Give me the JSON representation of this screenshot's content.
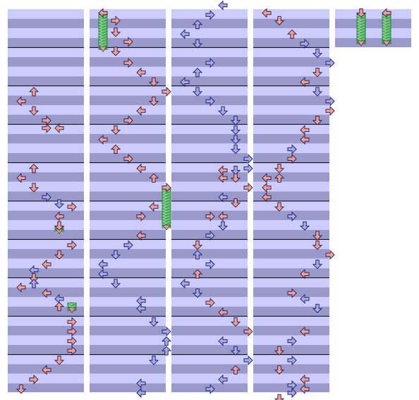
{
  "colors": {
    "band_light": "#ccccff",
    "band_dark": "#9999cc",
    "measure_line": "#000000",
    "arrow_red": "#ff9e8a",
    "arrow_blue": "#a8a8f2",
    "arrow_outline": "#1a1a55",
    "freeze_green": "#44aa55"
  },
  "chart_data": {
    "type": "step-chart",
    "columns": 5,
    "beats_per_column": 32,
    "lanes": 4,
    "notes": [
      {
        "c": 0,
        "b": 8.6,
        "lane": 1,
        "dir": "up",
        "color": "red"
      },
      {
        "c": 0,
        "b": 9.6,
        "lane": 0,
        "dir": "left",
        "color": "red"
      },
      {
        "c": 0,
        "b": 10.6,
        "lane": 1,
        "dir": "down",
        "color": "red"
      },
      {
        "c": 0,
        "b": 11.6,
        "lane": 2,
        "dir": "right",
        "color": "red"
      },
      {
        "c": 0,
        "b": 12.4,
        "lane": 2,
        "dir": "right",
        "color": "red"
      },
      {
        "c": 0,
        "b": 12.4,
        "lane": 3,
        "dir": "left",
        "color": "red"
      },
      {
        "c": 0,
        "b": 16.6,
        "lane": 1,
        "dir": "up",
        "color": "red"
      },
      {
        "c": 0,
        "b": 17.6,
        "lane": 0,
        "dir": "left",
        "color": "red"
      },
      {
        "c": 0,
        "b": 18.6,
        "lane": 1,
        "dir": "down",
        "color": "red"
      },
      {
        "c": 0,
        "b": 19.6,
        "lane": 2,
        "dir": "right",
        "color": "blue"
      },
      {
        "c": 0,
        "b": 20.3,
        "lane": 3,
        "dir": "down",
        "color": "blue"
      },
      {
        "c": 0,
        "b": 20.6,
        "lane": 4,
        "dir": "right",
        "color": "red"
      },
      {
        "c": 0,
        "b": 21.6,
        "lane": 3,
        "dir": "left",
        "color": "red"
      },
      {
        "c": 0,
        "b": 22.6,
        "lane": 3,
        "dir": "down",
        "color": "red"
      },
      {
        "c": 0,
        "b": 24.6,
        "lane": 4,
        "dir": "right",
        "color": "red"
      },
      {
        "c": 0,
        "b": 25.6,
        "lane": 3,
        "dir": "down",
        "color": "red"
      },
      {
        "c": 0,
        "b": 26.6,
        "lane": 2,
        "dir": "left",
        "color": "red"
      },
      {
        "c": 0,
        "b": 27.2,
        "lane": 1,
        "dir": "left",
        "color": "blue"
      },
      {
        "c": 0,
        "b": 28.0,
        "lane": 1,
        "dir": "down",
        "color": "red"
      },
      {
        "c": 0,
        "b": 28.6,
        "lane": 1,
        "dir": "up",
        "color": "blue"
      },
      {
        "c": 0,
        "b": 29.0,
        "lane": 0,
        "dir": "left",
        "color": "red"
      },
      {
        "c": 0,
        "b": 29.6,
        "lane": 2,
        "dir": "left",
        "color": "red"
      },
      {
        "c": 0,
        "b": 30.2,
        "lane": 3,
        "dir": "left",
        "color": "blue"
      },
      {
        "c": 0,
        "b": 31.0,
        "lane": 3,
        "dir": "up",
        "color": "red"
      },
      {
        "c": 0,
        "b": 32.6,
        "lane": 4,
        "dir": "right",
        "color": "red"
      },
      {
        "c": 0,
        "b": 33.6,
        "lane": 4,
        "dir": "right",
        "color": "red"
      },
      {
        "c": 0,
        "b": 34.6,
        "lane": 4,
        "dir": "right",
        "color": "red"
      },
      {
        "c": 0,
        "b": 35.6,
        "lane": 4,
        "dir": "right",
        "color": "red"
      },
      {
        "c": 0,
        "b": 36.6,
        "lane": 3,
        "dir": "down",
        "color": "red"
      },
      {
        "c": 0,
        "b": 37.6,
        "lane": 2,
        "dir": "left",
        "color": "red"
      },
      {
        "c": 0,
        "b": 38.6,
        "lane": 1,
        "dir": "right",
        "color": "red"
      },
      {
        "c": 0,
        "b": 39.6,
        "lane": 0,
        "dir": "down",
        "color": "red"
      },
      {
        "c": 1,
        "b": 0.4,
        "lane": 0,
        "dir": "left",
        "color": "red"
      },
      {
        "c": 1,
        "b": 1.2,
        "lane": 1,
        "dir": "right",
        "color": "red"
      },
      {
        "c": 1,
        "b": 2.4,
        "lane": 1,
        "dir": "down",
        "color": "red"
      },
      {
        "c": 1,
        "b": 3.4,
        "lane": 2,
        "dir": "right",
        "color": "red"
      },
      {
        "c": 1,
        "b": 4.4,
        "lane": 1,
        "dir": "down",
        "color": "red"
      },
      {
        "c": 1,
        "b": 5.6,
        "lane": 2,
        "dir": "right",
        "color": "red"
      },
      {
        "c": 1,
        "b": 6.6,
        "lane": 3,
        "dir": "left",
        "color": "red"
      },
      {
        "c": 1,
        "b": 7.6,
        "lane": 4,
        "dir": "down",
        "color": "red"
      },
      {
        "c": 1,
        "b": 8.6,
        "lane": 5,
        "dir": "right",
        "color": "red"
      },
      {
        "c": 1,
        "b": 9.6,
        "lane": 4,
        "dir": "down",
        "color": "red"
      },
      {
        "c": 1,
        "b": 10.6,
        "lane": 3,
        "dir": "left",
        "color": "red"
      },
      {
        "c": 1,
        "b": 11.6,
        "lane": 2,
        "dir": "right",
        "color": "red"
      },
      {
        "c": 1,
        "b": 12.6,
        "lane": 1,
        "dir": "down",
        "color": "red"
      },
      {
        "c": 1,
        "b": 13.6,
        "lane": 0,
        "dir": "left",
        "color": "red"
      },
      {
        "c": 1,
        "b": 14.6,
        "lane": 1,
        "dir": "up",
        "color": "red"
      },
      {
        "c": 1,
        "b": 15.6,
        "lane": 2,
        "dir": "right",
        "color": "red"
      },
      {
        "c": 1,
        "b": 16.6,
        "lane": 3,
        "dir": "left",
        "color": "red"
      },
      {
        "c": 1,
        "b": 17.6,
        "lane": 4,
        "dir": "up",
        "color": "red"
      },
      {
        "c": 1,
        "b": 18.6,
        "lane": 5,
        "dir": "right",
        "color": "red"
      },
      {
        "c": 1,
        "b": 20.6,
        "lane": 4,
        "dir": "left",
        "color": "red"
      },
      {
        "c": 1,
        "b": 21.6,
        "lane": 3,
        "dir": "right",
        "color": "red"
      },
      {
        "c": 1,
        "b": 23.6,
        "lane": 3,
        "dir": "left",
        "color": "red"
      },
      {
        "c": 1,
        "b": 24.6,
        "lane": 2,
        "dir": "right",
        "color": "blue"
      },
      {
        "c": 1,
        "b": 25.6,
        "lane": 1,
        "dir": "down",
        "color": "blue"
      },
      {
        "c": 1,
        "b": 26.6,
        "lane": 0,
        "dir": "left",
        "color": "blue"
      },
      {
        "c": 1,
        "b": 27.6,
        "lane": 0,
        "dir": "left",
        "color": "blue"
      },
      {
        "c": 1,
        "b": 28.6,
        "lane": 1,
        "dir": "down",
        "color": "blue"
      },
      {
        "c": 1,
        "b": 30.4,
        "lane": 3,
        "dir": "left",
        "color": "blue"
      },
      {
        "c": 1,
        "b": 31.2,
        "lane": 3,
        "dir": "left",
        "color": "blue"
      },
      {
        "c": 1,
        "b": 32.6,
        "lane": 4,
        "dir": "down",
        "color": "blue"
      },
      {
        "c": 1,
        "b": 33.6,
        "lane": 5,
        "dir": "right",
        "color": "blue"
      },
      {
        "c": 1,
        "b": 34.6,
        "lane": 5,
        "dir": "up",
        "color": "blue"
      },
      {
        "c": 1,
        "b": 35.6,
        "lane": 5,
        "dir": "up",
        "color": "blue"
      },
      {
        "c": 1,
        "b": 36.6,
        "lane": 4,
        "dir": "down",
        "color": "blue"
      },
      {
        "c": 1,
        "b": 39.0,
        "lane": 3,
        "dir": "left",
        "color": "blue"
      },
      {
        "c": 1,
        "b": 40.0,
        "lane": 3,
        "dir": "left",
        "color": "blue"
      },
      {
        "c": 2,
        "b": -0.4,
        "lane": 3,
        "dir": "left",
        "color": "blue"
      },
      {
        "c": 2,
        "b": 0.6,
        "lane": 2,
        "dir": "right",
        "color": "blue"
      },
      {
        "c": 2,
        "b": 1.6,
        "lane": 1,
        "dir": "up",
        "color": "blue"
      },
      {
        "c": 2,
        "b": 2.6,
        "lane": 0,
        "dir": "left",
        "color": "blue"
      },
      {
        "c": 2,
        "b": 3.6,
        "lane": 1,
        "dir": "down",
        "color": "blue"
      },
      {
        "c": 2,
        "b": 5.6,
        "lane": 2,
        "dir": "right",
        "color": "blue"
      },
      {
        "c": 2,
        "b": 6.6,
        "lane": 1,
        "dir": "up",
        "color": "blue"
      },
      {
        "c": 2,
        "b": 7.6,
        "lane": 0,
        "dir": "left",
        "color": "blue"
      },
      {
        "c": 2,
        "b": 8.6,
        "lane": 1,
        "dir": "down",
        "color": "blue"
      },
      {
        "c": 2,
        "b": 9.6,
        "lane": 2,
        "dir": "right",
        "color": "blue"
      },
      {
        "c": 2,
        "b": 10.6,
        "lane": 3,
        "dir": "down",
        "color": "blue"
      },
      {
        "c": 2,
        "b": 11.6,
        "lane": 4,
        "dir": "down",
        "color": "blue"
      },
      {
        "c": 2,
        "b": 12.6,
        "lane": 4,
        "dir": "down",
        "color": "blue"
      },
      {
        "c": 2,
        "b": 13.6,
        "lane": 4,
        "dir": "down",
        "color": "blue"
      },
      {
        "c": 2,
        "b": 14.6,
        "lane": 4,
        "dir": "down",
        "color": "blue"
      },
      {
        "c": 2,
        "b": 15.6,
        "lane": 5,
        "dir": "right",
        "color": "blue"
      },
      {
        "c": 2,
        "b": 16.6,
        "lane": 5,
        "dir": "right",
        "color": "blue"
      },
      {
        "c": 2,
        "b": 16.8,
        "lane": 3,
        "dir": "left",
        "color": "red"
      },
      {
        "c": 2,
        "b": 16.8,
        "lane": 4,
        "dir": "down",
        "color": "blue"
      },
      {
        "c": 2,
        "b": 17.6,
        "lane": 4,
        "dir": "down",
        "color": "red"
      },
      {
        "c": 2,
        "b": 17.6,
        "lane": 3,
        "dir": "left",
        "color": "red"
      },
      {
        "c": 2,
        "b": 18.6,
        "lane": 5,
        "dir": "right",
        "color": "red"
      },
      {
        "c": 2,
        "b": 19.6,
        "lane": 3,
        "dir": "left",
        "color": "blue"
      },
      {
        "c": 2,
        "b": 20.2,
        "lane": 4,
        "dir": "down",
        "color": "red"
      },
      {
        "c": 2,
        "b": 21.6,
        "lane": 2,
        "dir": "right",
        "color": "red"
      },
      {
        "c": 2,
        "b": 21.6,
        "lane": 3,
        "dir": "left",
        "color": "red"
      },
      {
        "c": 2,
        "b": 22.6,
        "lane": 3,
        "dir": "down",
        "color": "blue"
      },
      {
        "c": 2,
        "b": 23.6,
        "lane": 2,
        "dir": "right",
        "color": "blue"
      },
      {
        "c": 2,
        "b": 24.6,
        "lane": 1,
        "dir": "down",
        "color": "red"
      },
      {
        "c": 2,
        "b": 25.6,
        "lane": 1,
        "dir": "up",
        "color": "blue"
      },
      {
        "c": 2,
        "b": 26.6,
        "lane": 2,
        "dir": "right",
        "color": "blue"
      },
      {
        "c": 2,
        "b": 27.6,
        "lane": 1,
        "dir": "up",
        "color": "red"
      },
      {
        "c": 2,
        "b": 28.6,
        "lane": 0,
        "dir": "left",
        "color": "blue"
      },
      {
        "c": 2,
        "b": 29.6,
        "lane": 1,
        "dir": "down",
        "color": "blue"
      },
      {
        "c": 2,
        "b": 30.6,
        "lane": 2,
        "dir": "right",
        "color": "red"
      },
      {
        "c": 2,
        "b": 31.6,
        "lane": 3,
        "dir": "left",
        "color": "red"
      },
      {
        "c": 2,
        "b": 32.6,
        "lane": 4,
        "dir": "down",
        "color": "red"
      },
      {
        "c": 2,
        "b": 33.6,
        "lane": 5,
        "dir": "right",
        "color": "red"
      },
      {
        "c": 2,
        "b": 34.6,
        "lane": 3,
        "dir": "left",
        "color": "blue"
      },
      {
        "c": 2,
        "b": 35.6,
        "lane": 4,
        "dir": "down",
        "color": "blue"
      },
      {
        "c": 2,
        "b": 36.6,
        "lane": 5,
        "dir": "right",
        "color": "blue"
      },
      {
        "c": 2,
        "b": 37.6,
        "lane": 4,
        "dir": "up",
        "color": "red"
      },
      {
        "c": 2,
        "b": 38.6,
        "lane": 3,
        "dir": "left",
        "color": "blue"
      },
      {
        "c": 2,
        "b": 39.6,
        "lane": 2,
        "dir": "right",
        "color": "blue"
      },
      {
        "c": 3,
        "b": 0.4,
        "lane": 0,
        "dir": "left",
        "color": "red"
      },
      {
        "c": 3,
        "b": 1.2,
        "lane": 1,
        "dir": "down",
        "color": "red"
      },
      {
        "c": 3,
        "b": 2.6,
        "lane": 2,
        "dir": "up",
        "color": "red"
      },
      {
        "c": 3,
        "b": 3.6,
        "lane": 3,
        "dir": "right",
        "color": "blue"
      },
      {
        "c": 3,
        "b": 4.6,
        "lane": 4,
        "dir": "down",
        "color": "blue"
      },
      {
        "c": 3,
        "b": 5.6,
        "lane": 5,
        "dir": "right",
        "color": "blue"
      },
      {
        "c": 3,
        "b": 6.6,
        "lane": 4,
        "dir": "down",
        "color": "red"
      },
      {
        "c": 3,
        "b": 7.6,
        "lane": 3,
        "dir": "left",
        "color": "red"
      },
      {
        "c": 3,
        "b": 8.6,
        "lane": 4,
        "dir": "down",
        "color": "blue"
      },
      {
        "c": 3,
        "b": 9.6,
        "lane": 5,
        "dir": "right",
        "color": "blue"
      },
      {
        "c": 3,
        "b": 10.6,
        "lane": 5,
        "dir": "right",
        "color": "red"
      },
      {
        "c": 3,
        "b": 11.6,
        "lane": 4,
        "dir": "down",
        "color": "red"
      },
      {
        "c": 3,
        "b": 12.6,
        "lane": 3,
        "dir": "left",
        "color": "red"
      },
      {
        "c": 3,
        "b": 13.6,
        "lane": 3,
        "dir": "left",
        "color": "red"
      },
      {
        "c": 3,
        "b": 14.6,
        "lane": 2,
        "dir": "right",
        "color": "blue"
      },
      {
        "c": 3,
        "b": 15.6,
        "lane": 2,
        "dir": "right",
        "color": "red"
      },
      {
        "c": 3,
        "b": 16.6,
        "lane": 1,
        "dir": "down",
        "color": "red"
      },
      {
        "c": 3,
        "b": 17.6,
        "lane": 0,
        "dir": "left",
        "color": "red"
      },
      {
        "c": 3,
        "b": 17.6,
        "lane": 1,
        "dir": "up",
        "color": "red"
      },
      {
        "c": 3,
        "b": 18.6,
        "lane": 0,
        "dir": "left",
        "color": "red"
      },
      {
        "c": 3,
        "b": 19.6,
        "lane": 0,
        "dir": "left",
        "color": "red"
      },
      {
        "c": 3,
        "b": 20.6,
        "lane": 1,
        "dir": "down",
        "color": "red"
      },
      {
        "c": 3,
        "b": 21.6,
        "lane": 2,
        "dir": "right",
        "color": "blue"
      },
      {
        "c": 3,
        "b": 22.6,
        "lane": 3,
        "dir": "down",
        "color": "blue"
      },
      {
        "c": 3,
        "b": 23.6,
        "lane": 4,
        "dir": "down",
        "color": "red"
      },
      {
        "c": 3,
        "b": 24.6,
        "lane": 4,
        "dir": "down",
        "color": "red"
      },
      {
        "c": 3,
        "b": 25.6,
        "lane": 5,
        "dir": "right",
        "color": "red"
      },
      {
        "c": 3,
        "b": 26.6,
        "lane": 4,
        "dir": "down",
        "color": "blue"
      },
      {
        "c": 3,
        "b": 27.6,
        "lane": 3,
        "dir": "left",
        "color": "red"
      },
      {
        "c": 3,
        "b": 29.6,
        "lane": 2,
        "dir": "right",
        "color": "red"
      },
      {
        "c": 3,
        "b": 30.2,
        "lane": 3,
        "dir": "left",
        "color": "blue"
      },
      {
        "c": 3,
        "b": 31.2,
        "lane": 4,
        "dir": "down",
        "color": "blue"
      },
      {
        "c": 3,
        "b": 33.6,
        "lane": 3,
        "dir": "left",
        "color": "red"
      },
      {
        "c": 3,
        "b": 34.6,
        "lane": 2,
        "dir": "right",
        "color": "blue"
      },
      {
        "c": 3,
        "b": 35.6,
        "lane": 1,
        "dir": "down",
        "color": "red"
      },
      {
        "c": 3,
        "b": 36.6,
        "lane": 2,
        "dir": "right",
        "color": "blue"
      },
      {
        "c": 3,
        "b": 37.6,
        "lane": 1,
        "dir": "down",
        "color": "red"
      },
      {
        "c": 3,
        "b": 38.6,
        "lane": 3,
        "dir": "left",
        "color": "red"
      },
      {
        "c": 3,
        "b": 39.2,
        "lane": 2,
        "dir": "right",
        "color": "blue"
      },
      {
        "c": 3,
        "b": 39.6,
        "lane": 3,
        "dir": "left",
        "color": "red"
      },
      {
        "c": 3,
        "b": 40.0,
        "lane": 2,
        "dir": "right",
        "color": "blue"
      },
      {
        "c": 3,
        "b": 40.6,
        "lane": 1,
        "dir": "down",
        "color": "red"
      },
      {
        "c": 4,
        "b": 0.4,
        "lane": 1,
        "dir": "down",
        "color": "red"
      },
      {
        "c": 4,
        "b": 0.4,
        "lane": 3,
        "dir": "left",
        "color": "red"
      }
    ],
    "freezes": [
      {
        "c": 1,
        "lane": 0,
        "b0": 0.4,
        "b1": 4.2
      },
      {
        "c": 1,
        "lane": 5,
        "b0": 18.6,
        "b1": 22.8
      },
      {
        "c": 0,
        "lane": 3,
        "b0": 22.6,
        "b1": 23.2
      },
      {
        "c": 0,
        "lane": 4,
        "b0": 30.6,
        "b1": 31.4
      },
      {
        "c": 4,
        "lane": 1,
        "b0": 0.4,
        "b1": 3.6
      },
      {
        "c": 4,
        "lane": 3,
        "b0": 0.4,
        "b1": 3.6
      }
    ]
  }
}
